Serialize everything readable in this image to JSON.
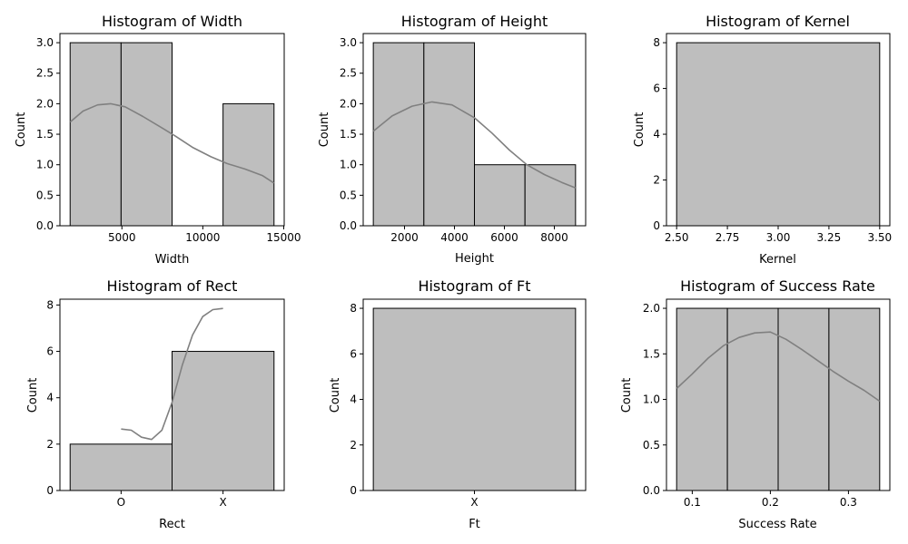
{
  "chart_data": [
    {
      "type": "bar",
      "title": "Histogram of Width",
      "xlabel": "Width",
      "ylabel": "Count",
      "bins": [
        [
          1800,
          4950
        ],
        [
          4950,
          8100
        ],
        [
          11250,
          14400
        ]
      ],
      "values": [
        3,
        3,
        2
      ],
      "xlim": [
        1170,
        15030
      ],
      "ylim": [
        0,
        3.15
      ],
      "xticks": [
        5000,
        10000,
        15000
      ],
      "xtick_labels": [
        "5000",
        "10000",
        "15000"
      ],
      "yticks": [
        0,
        0.5,
        1.0,
        1.5,
        2.0,
        2.5,
        3.0
      ],
      "ytick_labels": [
        "0.0",
        "0.5",
        "1.0",
        "1.5",
        "2.0",
        "2.5",
        "3.0"
      ],
      "kde": [
        [
          1800,
          1.7
        ],
        [
          2600,
          1.88
        ],
        [
          3500,
          1.98
        ],
        [
          4300,
          2.0
        ],
        [
          5200,
          1.95
        ],
        [
          6300,
          1.79
        ],
        [
          7500,
          1.6
        ],
        [
          8300,
          1.47
        ],
        [
          9400,
          1.28
        ],
        [
          10500,
          1.13
        ],
        [
          11500,
          1.02
        ],
        [
          12600,
          0.93
        ],
        [
          13700,
          0.82
        ],
        [
          14400,
          0.7
        ]
      ],
      "bar_color": "#bebebe",
      "line_color": "#808080"
    },
    {
      "type": "bar",
      "title": "Histogram of Height",
      "xlabel": "Height",
      "ylabel": "Count",
      "bins": [
        [
          750,
          2775
        ],
        [
          2775,
          4800
        ],
        [
          4800,
          6825
        ],
        [
          6825,
          8850
        ]
      ],
      "values": [
        3,
        3,
        1,
        1
      ],
      "xlim": [
        345,
        9255
      ],
      "ylim": [
        0,
        3.15
      ],
      "xticks": [
        2000,
        4000,
        6000,
        8000
      ],
      "xtick_labels": [
        "2000",
        "4000",
        "6000",
        "8000"
      ],
      "yticks": [
        0,
        0.5,
        1.0,
        1.5,
        2.0,
        2.5,
        3.0
      ],
      "ytick_labels": [
        "0.0",
        "0.5",
        "1.0",
        "1.5",
        "2.0",
        "2.5",
        "3.0"
      ],
      "kde": [
        [
          750,
          1.55
        ],
        [
          1500,
          1.8
        ],
        [
          2300,
          1.96
        ],
        [
          3100,
          2.03
        ],
        [
          3900,
          1.98
        ],
        [
          4800,
          1.77
        ],
        [
          5500,
          1.52
        ],
        [
          6200,
          1.24
        ],
        [
          6900,
          1.0
        ],
        [
          7600,
          0.84
        ],
        [
          8300,
          0.71
        ],
        [
          8850,
          0.62
        ]
      ],
      "bar_color": "#bebebe",
      "line_color": "#808080"
    },
    {
      "type": "bar",
      "title": "Histogram of Kernel",
      "xlabel": "Kernel",
      "ylabel": "Count",
      "bins": [
        [
          2.5,
          3.5
        ]
      ],
      "values": [
        8
      ],
      "xlim": [
        2.45,
        3.55
      ],
      "ylim": [
        0,
        8.4
      ],
      "xticks": [
        2.5,
        2.75,
        3.0,
        3.25,
        3.5
      ],
      "xtick_labels": [
        "2.50",
        "2.75",
        "3.00",
        "3.25",
        "3.50"
      ],
      "yticks": [
        0,
        2,
        4,
        6,
        8
      ],
      "ytick_labels": [
        "0",
        "2",
        "4",
        "6",
        "8"
      ],
      "kde": [],
      "bar_color": "#bebebe",
      "line_color": "#808080"
    },
    {
      "type": "bar",
      "title": "Histogram of Rect",
      "xlabel": "Rect",
      "ylabel": "Count",
      "bins": [
        [
          -0.5,
          0.5
        ],
        [
          0.5,
          1.5
        ]
      ],
      "values": [
        2,
        6
      ],
      "xlim": [
        -0.6,
        1.6
      ],
      "ylim": [
        0,
        8.25
      ],
      "xticks": [
        0,
        1
      ],
      "xtick_labels": [
        "O",
        "X"
      ],
      "yticks": [
        0,
        2,
        4,
        6,
        8
      ],
      "ytick_labels": [
        "0",
        "2",
        "4",
        "6",
        "8"
      ],
      "kde": [
        [
          0,
          2.65
        ],
        [
          0.1,
          2.6
        ],
        [
          0.2,
          2.3
        ],
        [
          0.3,
          2.2
        ],
        [
          0.4,
          2.6
        ],
        [
          0.5,
          3.8
        ],
        [
          0.6,
          5.4
        ],
        [
          0.7,
          6.7
        ],
        [
          0.8,
          7.5
        ],
        [
          0.9,
          7.8
        ],
        [
          1.0,
          7.85
        ]
      ],
      "bar_color": "#bebebe",
      "line_color": "#808080"
    },
    {
      "type": "bar",
      "title": "Histogram of Ft",
      "xlabel": "Ft",
      "ylabel": "Count",
      "bins": [
        [
          -0.5,
          0.5
        ]
      ],
      "values": [
        8
      ],
      "xlim": [
        -0.55,
        0.55
      ],
      "ylim": [
        0,
        8.4
      ],
      "xticks": [
        0
      ],
      "xtick_labels": [
        "X"
      ],
      "yticks": [
        0,
        2,
        4,
        6,
        8
      ],
      "ytick_labels": [
        "0",
        "2",
        "4",
        "6",
        "8"
      ],
      "kde": [],
      "bar_color": "#bebebe",
      "line_color": "#808080"
    },
    {
      "type": "bar",
      "title": "Histogram of Success Rate",
      "xlabel": "Success Rate",
      "ylabel": "Count",
      "bins": [
        [
          0.08,
          0.145
        ],
        [
          0.145,
          0.21
        ],
        [
          0.21,
          0.275
        ],
        [
          0.275,
          0.34
        ]
      ],
      "values": [
        2,
        2,
        2,
        2
      ],
      "xlim": [
        0.067,
        0.353
      ],
      "ylim": [
        0,
        2.1
      ],
      "xticks": [
        0.1,
        0.2,
        0.3
      ],
      "xtick_labels": [
        "0.1",
        "0.2",
        "0.3"
      ],
      "yticks": [
        0,
        0.5,
        1.0,
        1.5,
        2.0
      ],
      "ytick_labels": [
        "0.0",
        "0.5",
        "1.0",
        "1.5",
        "2.0"
      ],
      "kde": [
        [
          0.08,
          1.12
        ],
        [
          0.1,
          1.28
        ],
        [
          0.12,
          1.45
        ],
        [
          0.14,
          1.59
        ],
        [
          0.16,
          1.68
        ],
        [
          0.18,
          1.73
        ],
        [
          0.2,
          1.74
        ],
        [
          0.22,
          1.66
        ],
        [
          0.24,
          1.55
        ],
        [
          0.26,
          1.43
        ],
        [
          0.28,
          1.31
        ],
        [
          0.3,
          1.2
        ],
        [
          0.32,
          1.1
        ],
        [
          0.34,
          0.98
        ]
      ],
      "bar_color": "#bebebe",
      "line_color": "#808080"
    }
  ]
}
